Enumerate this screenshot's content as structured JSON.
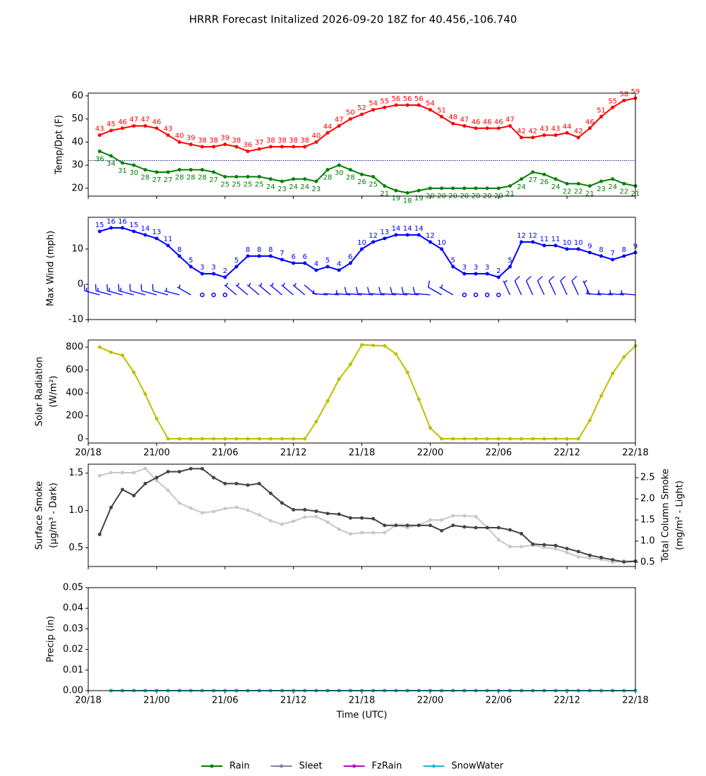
{
  "title": "HRRR Forecast Initalized 2026-09-20 18Z for 40.456,-106.740",
  "chart_data": [
    {
      "type": "line",
      "ylabel": "Temp/Dpt (F)",
      "xlim": [
        0,
        48
      ],
      "xticks": [
        {
          "value": 0,
          "label": "20/18"
        },
        {
          "value": 6,
          "label": "21/00"
        },
        {
          "value": 12,
          "label": "21/06"
        },
        {
          "value": 18,
          "label": "21/12"
        },
        {
          "value": 24,
          "label": "21/18"
        },
        {
          "value": 30,
          "label": "22/00"
        },
        {
          "value": 36,
          "label": "22/06"
        },
        {
          "value": 42,
          "label": "22/12"
        },
        {
          "value": 48,
          "label": "22/18"
        }
      ],
      "ylim": [
        16.6,
        61.2
      ],
      "yticks": [
        20,
        30,
        40,
        50,
        60
      ],
      "hline": 32,
      "hline_color": "#00008b",
      "x": [
        1,
        2,
        3,
        4,
        5,
        6,
        7,
        8,
        9,
        10,
        11,
        12,
        13,
        14,
        15,
        16,
        17,
        18,
        19,
        20,
        21,
        22,
        23,
        24,
        25,
        26,
        27,
        28,
        29,
        30,
        31,
        32,
        33,
        34,
        35,
        36,
        37,
        38,
        39,
        40,
        41,
        42,
        43,
        44,
        45,
        46,
        47,
        48
      ],
      "series": [
        {
          "color": "#ff0000",
          "labels": "above",
          "values": [
            43,
            45,
            46,
            47,
            47,
            46,
            43,
            40,
            39,
            38,
            38,
            39,
            38,
            36,
            37,
            38,
            38,
            38,
            38,
            40,
            44,
            47,
            50,
            52,
            54,
            55,
            56,
            56,
            56,
            54,
            51,
            48,
            47,
            46,
            46,
            46,
            47,
            42,
            42,
            43,
            43,
            44,
            42,
            46,
            51,
            55,
            58,
            59
          ]
        },
        {
          "color": "#008000",
          "labels": "below",
          "values": [
            36,
            34,
            31,
            30,
            28,
            27,
            27,
            28,
            28,
            28,
            27,
            25,
            25,
            25,
            25,
            24,
            23,
            24,
            24,
            23,
            28,
            30,
            28,
            26,
            25,
            21,
            19,
            18,
            19,
            20,
            20,
            20,
            20,
            20,
            20,
            20,
            21,
            24,
            27,
            26,
            24,
            22,
            22,
            21,
            23,
            24,
            22,
            21
          ]
        }
      ]
    },
    {
      "type": "line",
      "ylabel": "Max Wind (mph)",
      "xlim": [
        0,
        48
      ],
      "xticks": [
        {
          "value": 0,
          "label": "20/18"
        },
        {
          "value": 6,
          "label": "21/00"
        },
        {
          "value": 12,
          "label": "21/06"
        },
        {
          "value": 18,
          "label": "21/12"
        },
        {
          "value": 24,
          "label": "21/18"
        },
        {
          "value": 30,
          "label": "22/00"
        },
        {
          "value": 36,
          "label": "22/06"
        },
        {
          "value": 42,
          "label": "22/12"
        },
        {
          "value": 48,
          "label": "22/18"
        }
      ],
      "ylim": [
        -10,
        19
      ],
      "yticks": [
        -10,
        0,
        10
      ],
      "x": [
        1,
        2,
        3,
        4,
        5,
        6,
        7,
        8,
        9,
        10,
        11,
        12,
        13,
        14,
        15,
        16,
        17,
        18,
        19,
        20,
        21,
        22,
        23,
        24,
        25,
        26,
        27,
        28,
        29,
        30,
        31,
        32,
        33,
        34,
        35,
        36,
        37,
        38,
        39,
        40,
        41,
        42,
        43,
        44,
        45,
        46,
        47,
        48
      ],
      "series": [
        {
          "color": "#0000ff",
          "labels": "above",
          "values": [
            15,
            16,
            16,
            15,
            14,
            13,
            11,
            8,
            5,
            3,
            3,
            2,
            5,
            8,
            8,
            8,
            7,
            6,
            6,
            4,
            5,
            4,
            6,
            10,
            12,
            13,
            14,
            14,
            14,
            12,
            10,
            5,
            3,
            3,
            3,
            2,
            5,
            12,
            12,
            11,
            11,
            10,
            10,
            9,
            8,
            7,
            8,
            9
          ]
        }
      ],
      "barbs": {
        "y": -3,
        "color": "#0000ff",
        "directions": [
          285,
          285,
          285,
          285,
          285,
          285,
          285,
          285,
          300,
          300,
          300,
          300,
          310,
          310,
          310,
          310,
          310,
          310,
          310,
          310,
          275,
          275,
          275,
          275,
          275,
          275,
          275,
          275,
          275,
          275,
          300,
          300,
          300,
          300,
          300,
          300,
          335,
          335,
          335,
          335,
          335,
          335,
          335,
          335,
          275,
          275,
          275,
          275
        ]
      }
    },
    {
      "type": "line",
      "ylabel": [
        "Solar Radiation",
        "(W/m²)"
      ],
      "xlim": [
        0,
        48
      ],
      "xtick_labels": true,
      "xticks": [
        {
          "value": 0,
          "label": "20/18"
        },
        {
          "value": 6,
          "label": "21/00"
        },
        {
          "value": 12,
          "label": "21/06"
        },
        {
          "value": 18,
          "label": "21/12"
        },
        {
          "value": 24,
          "label": "21/18"
        },
        {
          "value": 30,
          "label": "22/00"
        },
        {
          "value": 36,
          "label": "22/06"
        },
        {
          "value": 42,
          "label": "22/12"
        },
        {
          "value": 48,
          "label": "22/18"
        }
      ],
      "ylim": [
        -37,
        862
      ],
      "yticks": [
        0,
        200,
        400,
        600,
        800
      ],
      "x": [
        1,
        2,
        3,
        4,
        5,
        6,
        7,
        8,
        9,
        10,
        11,
        12,
        13,
        14,
        15,
        16,
        17,
        18,
        19,
        20,
        21,
        22,
        23,
        24,
        25,
        26,
        27,
        28,
        29,
        30,
        31,
        32,
        33,
        34,
        35,
        36,
        37,
        38,
        39,
        40,
        41,
        42,
        43,
        44,
        45,
        46,
        47,
        48
      ],
      "series": [
        {
          "color": "#bfbf00",
          "values": [
            800,
            755,
            728,
            580,
            390,
            175,
            0,
            0,
            0,
            0,
            0,
            0,
            0,
            0,
            0,
            0,
            0,
            0,
            0,
            150,
            330,
            520,
            650,
            820,
            815,
            812,
            740,
            580,
            345,
            95,
            0,
            0,
            0,
            0,
            0,
            0,
            0,
            0,
            0,
            0,
            0,
            0,
            0,
            160,
            375,
            570,
            715,
            810
          ]
        }
      ]
    },
    {
      "type": "line",
      "ylabel": [
        "Surface Smoke",
        "(µg/m³ - Dark)"
      ],
      "y2label": [
        "Total Column Smoke",
        "(mg/m² - Light)"
      ],
      "xlim": [
        0,
        48
      ],
      "xticks": [
        {
          "value": 0,
          "label": "20/18"
        },
        {
          "value": 6,
          "label": "21/00"
        },
        {
          "value": 12,
          "label": "21/06"
        },
        {
          "value": 18,
          "label": "21/12"
        },
        {
          "value": 24,
          "label": "21/18"
        },
        {
          "value": 30,
          "label": "22/00"
        },
        {
          "value": 36,
          "label": "22/06"
        },
        {
          "value": 42,
          "label": "22/12"
        },
        {
          "value": 48,
          "label": "22/18"
        }
      ],
      "ylim": [
        0.25,
        1.62
      ],
      "yticks": [
        0.5,
        {
          "value": 1,
          "label": "1.0"
        },
        1.5
      ],
      "y2lim": [
        0.4,
        2.82
      ],
      "y2ticks": [
        0.5,
        {
          "value": 1,
          "label": "1.0"
        },
        1.5,
        {
          "value": 2,
          "label": "2.0"
        },
        2.5
      ],
      "x": [
        1,
        2,
        3,
        4,
        5,
        6,
        7,
        8,
        9,
        10,
        11,
        12,
        13,
        14,
        15,
        16,
        17,
        18,
        19,
        20,
        21,
        22,
        23,
        24,
        25,
        26,
        27,
        28,
        29,
        30,
        31,
        32,
        33,
        34,
        35,
        36,
        37,
        38,
        39,
        40,
        41,
        42,
        43,
        44,
        45,
        46,
        47,
        48
      ],
      "series": [
        {
          "color": "#c8c8c8",
          "axis": "y2",
          "values": [
            2.55,
            2.62,
            2.62,
            2.62,
            2.72,
            2.43,
            2.2,
            1.9,
            1.78,
            1.67,
            1.7,
            1.77,
            1.8,
            1.73,
            1.62,
            1.48,
            1.4,
            1.47,
            1.57,
            1.58,
            1.45,
            1.28,
            1.17,
            1.2,
            1.2,
            1.2,
            1.38,
            1.32,
            1.38,
            1.5,
            1.5,
            1.6,
            1.6,
            1.58,
            1.32,
            1.03,
            0.87,
            0.87,
            0.9,
            0.85,
            0.82,
            0.73,
            0.63,
            0.6,
            0.57,
            0.5,
            0.53,
            0.53
          ]
        },
        {
          "color": "#444444",
          "values": [
            0.68,
            1.04,
            1.28,
            1.2,
            1.36,
            1.44,
            1.52,
            1.52,
            1.56,
            1.56,
            1.44,
            1.36,
            1.36,
            1.34,
            1.36,
            1.23,
            1.1,
            1.01,
            1.01,
            0.99,
            0.96,
            0.95,
            0.9,
            0.9,
            0.89,
            0.8,
            0.8,
            0.8,
            0.8,
            0.8,
            0.73,
            0.8,
            0.78,
            0.77,
            0.77,
            0.77,
            0.74,
            0.69,
            0.55,
            0.54,
            0.53,
            0.49,
            0.45,
            0.4,
            0.37,
            0.34,
            0.31,
            0.32
          ]
        }
      ]
    },
    {
      "type": "line",
      "ylabel": "Precip (in)",
      "xlabel": "Time (UTC)",
      "xlim": [
        0,
        48
      ],
      "xtick_labels": true,
      "legend": "bottom",
      "xticks": [
        {
          "value": 0,
          "label": "20/18"
        },
        {
          "value": 6,
          "label": "21/00"
        },
        {
          "value": 12,
          "label": "21/06"
        },
        {
          "value": 18,
          "label": "21/12"
        },
        {
          "value": 24,
          "label": "21/18"
        },
        {
          "value": 30,
          "label": "22/00"
        },
        {
          "value": 36,
          "label": "22/06"
        },
        {
          "value": 42,
          "label": "22/12"
        },
        {
          "value": 48,
          "label": "22/18"
        }
      ],
      "ylim": [
        0,
        0.05
      ],
      "yticks": [
        {
          "value": 0,
          "label": "0.00"
        },
        0.01,
        0.02,
        0.03,
        0.04,
        0.05
      ],
      "x": [
        1,
        2,
        3,
        4,
        5,
        6,
        7,
        8,
        9,
        10,
        11,
        12,
        13,
        14,
        15,
        16,
        17,
        18,
        19,
        20,
        21,
        22,
        23,
        24,
        25,
        26,
        27,
        28,
        29,
        30,
        31,
        32,
        33,
        34,
        35,
        36,
        37,
        38,
        39,
        40,
        41,
        42,
        43,
        44,
        45,
        46,
        47,
        48
      ],
      "series": [
        {
          "name": "Rain",
          "color": "#008000",
          "values": [
            null,
            0,
            0,
            0,
            0,
            0,
            0,
            0,
            0,
            0,
            0,
            0,
            0,
            0,
            0,
            0,
            0,
            0,
            0,
            0,
            0,
            0,
            0,
            0,
            0,
            0,
            0,
            0,
            0,
            0,
            0,
            0,
            0,
            0,
            0,
            0,
            0,
            0,
            0,
            0,
            0,
            0,
            0,
            0,
            0,
            0,
            0,
            0
          ]
        },
        {
          "name": "Sleet",
          "color": "#8e7cac",
          "values": [
            null,
            0,
            0,
            0,
            0,
            0,
            0,
            0,
            0,
            0,
            0,
            0,
            0,
            0,
            0,
            0,
            0,
            0,
            0,
            0,
            0,
            0,
            0,
            0,
            0,
            0,
            0,
            0,
            0,
            0,
            0,
            0,
            0,
            0,
            0,
            0,
            0,
            0,
            0,
            0,
            0,
            0,
            0,
            0,
            0,
            0,
            0,
            0
          ]
        },
        {
          "name": "FzRain",
          "color": "#c000c0",
          "values": [
            null,
            0,
            0,
            0,
            0,
            0,
            0,
            0,
            0,
            0,
            0,
            0,
            0,
            0,
            0,
            0,
            0,
            0,
            0,
            0,
            0,
            0,
            0,
            0,
            0,
            0,
            0,
            0,
            0,
            0,
            0,
            0,
            0,
            0,
            0,
            0,
            0,
            0,
            0,
            0,
            0,
            0,
            0,
            0,
            0,
            0,
            0,
            0
          ]
        },
        {
          "name": "SnowWater",
          "color": "#17becf",
          "values": [
            null,
            0,
            0,
            0,
            0,
            0,
            0,
            0,
            0,
            0,
            0,
            0,
            0,
            0,
            0,
            0,
            0,
            0,
            0,
            0,
            0,
            0,
            0,
            0,
            0,
            0,
            0,
            0,
            0,
            0,
            0,
            0,
            0,
            0,
            0,
            0,
            0,
            0,
            0,
            0,
            0,
            0,
            0,
            0,
            0,
            0,
            0,
            0
          ]
        }
      ]
    }
  ]
}
